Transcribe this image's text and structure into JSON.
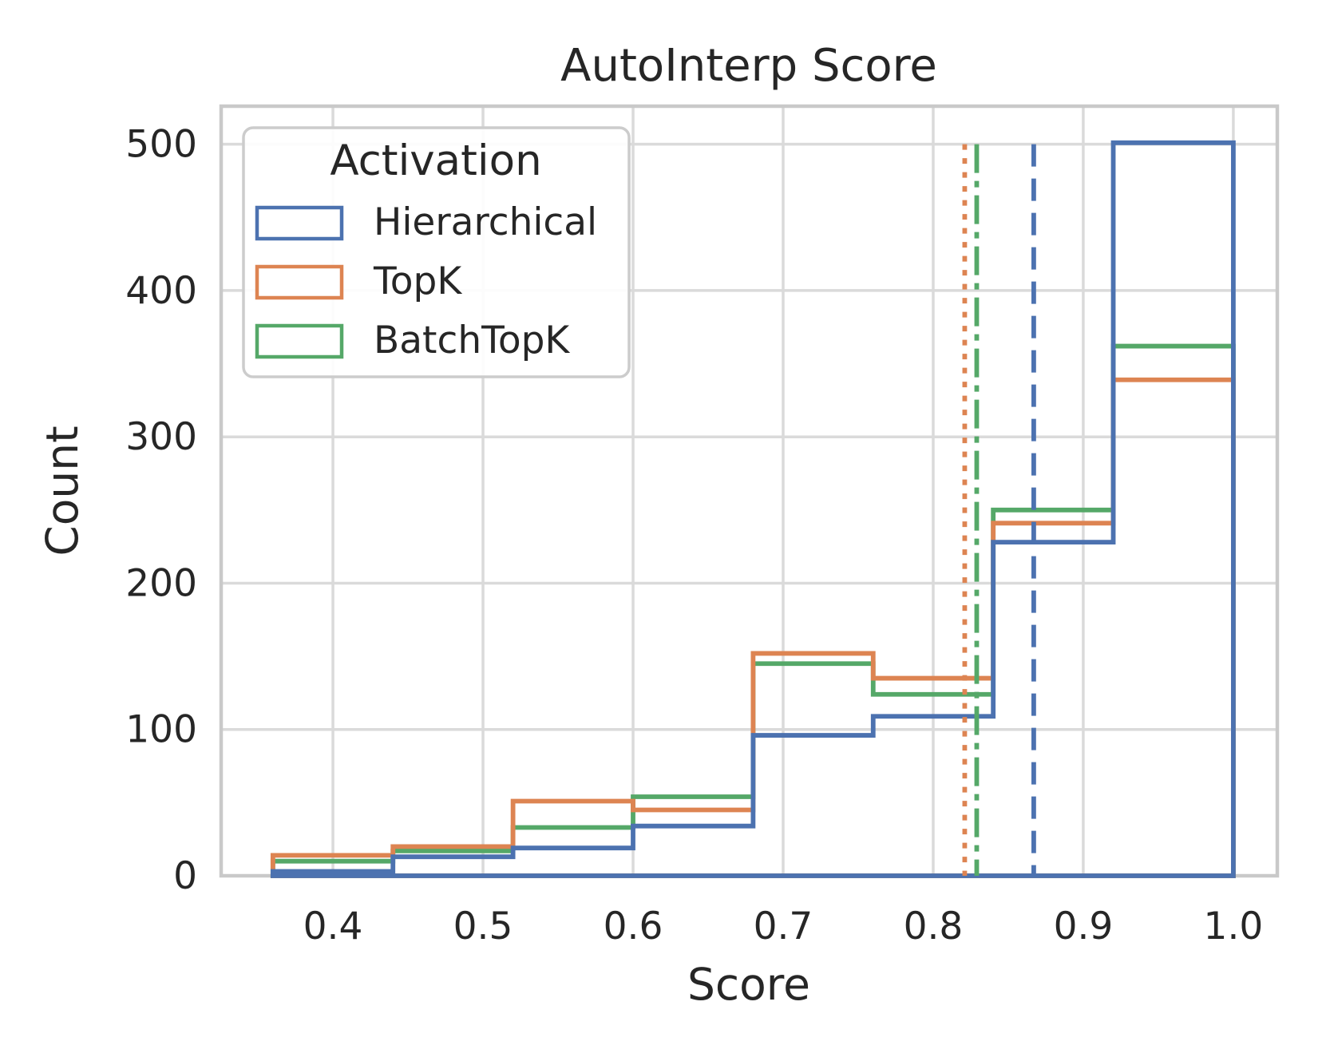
{
  "figure": {
    "background": "#ffffff",
    "text_color": "#262626",
    "grid_color": "#dadada",
    "spine_color": "#c9c9c9"
  },
  "chart_data": {
    "type": "histogram-step",
    "title": "AutoInterp Score",
    "xlabel": "Score",
    "ylabel": "Count",
    "grid": true,
    "xlim": [
      0.3255,
      1.0293
    ],
    "ylim": [
      0,
      526
    ],
    "x_ticks": [
      0.4,
      0.5,
      0.6,
      0.7,
      0.8,
      0.9,
      1.0
    ],
    "x_tick_labels": [
      "0.4",
      "0.5",
      "0.6",
      "0.7",
      "0.8",
      "0.9",
      "1.0"
    ],
    "y_ticks": [
      0,
      100,
      200,
      300,
      400,
      500
    ],
    "y_tick_labels": [
      "0",
      "100",
      "200",
      "300",
      "400",
      "500"
    ],
    "bin_edges": [
      0.36,
      0.44,
      0.52,
      0.6,
      0.68,
      0.76,
      0.84,
      0.92,
      1.0
    ],
    "series": [
      {
        "name": "Hierarchical",
        "color": "#4C72B0",
        "counts": [
          3,
          13,
          19,
          34,
          96,
          109,
          228,
          501
        ],
        "mean_line": {
          "x": 0.867,
          "style": "dashed",
          "y_span": [
            0,
            500
          ]
        }
      },
      {
        "name": "TopK",
        "color": "#DD8452",
        "counts": [
          14,
          20,
          51,
          45,
          152,
          135,
          241,
          339
        ],
        "mean_line": {
          "x": 0.821,
          "style": "dotted",
          "y_span": [
            0,
            500
          ]
        }
      },
      {
        "name": "BatchTopK",
        "color": "#55A868",
        "counts": [
          10,
          17,
          33,
          54,
          145,
          124,
          250,
          362
        ],
        "mean_line": {
          "x": 0.829,
          "style": "dashdot",
          "y_span": [
            0,
            500
          ]
        }
      }
    ],
    "legend": {
      "title": "Activation",
      "position": "upper-left"
    }
  }
}
